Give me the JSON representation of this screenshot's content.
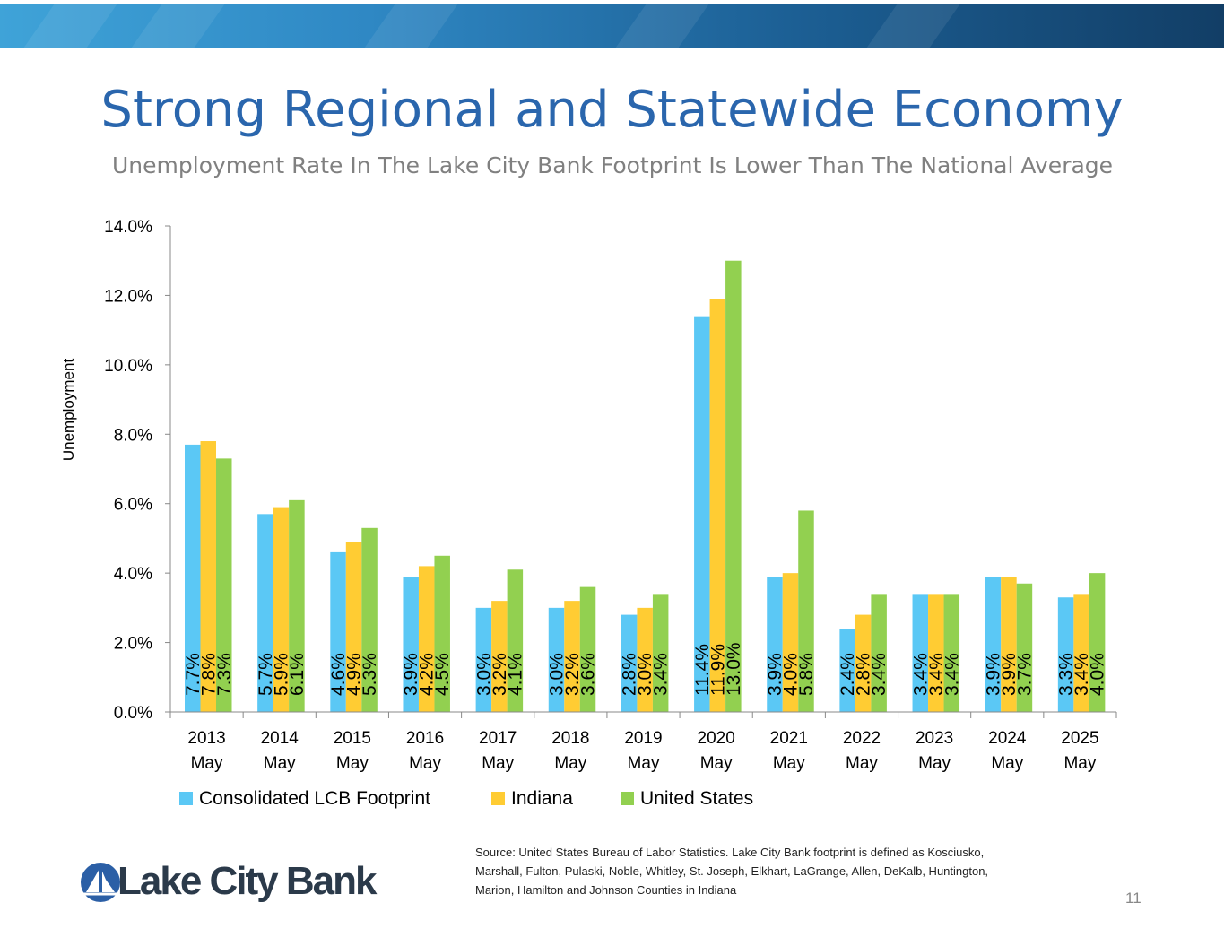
{
  "slide": {
    "title": "Strong Regional and Statewide Economy",
    "subtitle": "Unemployment Rate In The Lake City Bank Footprint Is Lower Than The National Average",
    "source": "Source: United States Bureau of Labor Statistics.  Lake City Bank footprint is defined as Kosciusko, Marshall, Fulton, Pulaski, Noble, Whitley, St. Joseph, Elkhart, LaGrange, Allen, DeKalb, Huntington, Marion, Hamilton and Johnson Counties in Indiana",
    "page_number": "11",
    "logo": {
      "text": "Lake City Bank",
      "icon": "lake-city-bank-logo-icon"
    }
  },
  "colors": {
    "banner": "#2f7fc0",
    "title": "#2a66ad",
    "subtitle": "#808080",
    "lcb": "#5bc8f5",
    "indiana": "#ffcc33",
    "us": "#92d050",
    "logo": "#2b5fa6"
  },
  "chart_data": {
    "type": "bar",
    "title": "",
    "xlabel": "",
    "ylabel": "Unemployment",
    "ylim": [
      0,
      14
    ],
    "yticks": [
      "0.0%",
      "2.0%",
      "4.0%",
      "6.0%",
      "8.0%",
      "10.0%",
      "12.0%",
      "14.0%"
    ],
    "ytick_values": [
      0,
      2,
      4,
      6,
      8,
      10,
      12,
      14
    ],
    "categories": [
      [
        "2013",
        "May"
      ],
      [
        "2014",
        "May"
      ],
      [
        "2015",
        "May"
      ],
      [
        "2016",
        "May"
      ],
      [
        "2017",
        "May"
      ],
      [
        "2018",
        "May"
      ],
      [
        "2019",
        "May"
      ],
      [
        "2020",
        "May"
      ],
      [
        "2021",
        "May"
      ],
      [
        "2022",
        "May"
      ],
      [
        "2023",
        "May"
      ],
      [
        "2024",
        "May"
      ],
      [
        "2025",
        "May"
      ]
    ],
    "legend_position": "bottom",
    "series": [
      {
        "name": "Consolidated LCB Footprint",
        "color": "#5bc8f5",
        "values": [
          7.7,
          5.7,
          4.6,
          3.9,
          3.0,
          3.0,
          2.8,
          11.4,
          3.9,
          2.4,
          3.4,
          3.9,
          3.3
        ],
        "labels": [
          "7.7%",
          "5.7%",
          "4.6%",
          "3.9%",
          "3.0%",
          "3.0%",
          "2.8%",
          "11.4%",
          "3.9%",
          "2.4%",
          "3.4%",
          "3.9%",
          "3.3%"
        ]
      },
      {
        "name": "Indiana",
        "color": "#ffcc33",
        "values": [
          7.8,
          5.9,
          4.9,
          4.2,
          3.2,
          3.2,
          3.0,
          11.9,
          4.0,
          2.8,
          3.4,
          3.9,
          3.4
        ],
        "labels": [
          "7.8%",
          "5.9%",
          "4.9%",
          "4.2%",
          "3.2%",
          "3.2%",
          "3.0%",
          "11.9%",
          "4.0%",
          "2.8%",
          "3.4%",
          "3.9%",
          "3.4%"
        ]
      },
      {
        "name": "United States",
        "color": "#92d050",
        "values": [
          7.3,
          6.1,
          5.3,
          4.5,
          4.1,
          3.6,
          3.4,
          13.0,
          5.8,
          3.4,
          3.4,
          3.7,
          4.0
        ],
        "labels": [
          "7.3%",
          "6.1%",
          "5.3%",
          "4.5%",
          "4.1%",
          "3.6%",
          "3.4%",
          "13.0%",
          "5.8%",
          "3.4%",
          "3.4%",
          "3.7%",
          "4.0%"
        ]
      }
    ]
  }
}
